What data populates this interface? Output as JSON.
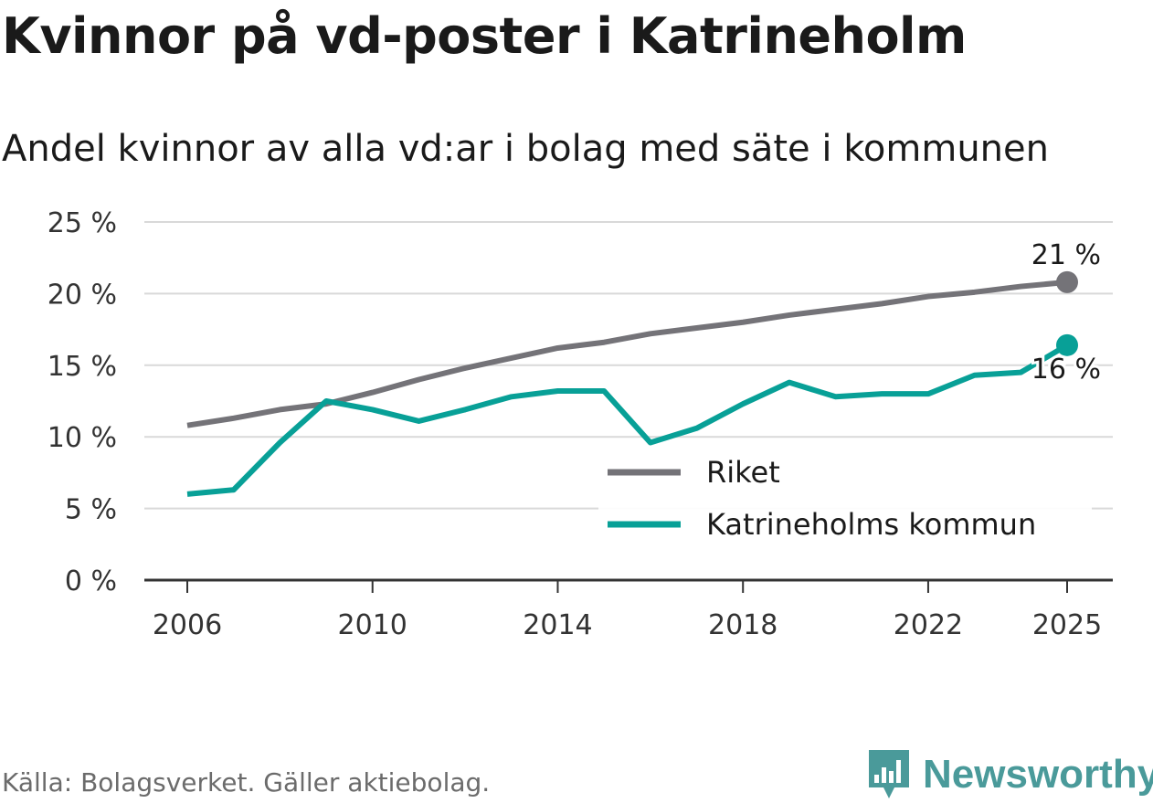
{
  "header": {
    "title": "Kvinnor på vd-poster i Katrineholm",
    "subtitle": "Andel kvinnor av alla vd:ar i bolag med säte i kommunen"
  },
  "footer": {
    "source": "Källa: Bolagsverket. Gäller aktiebolag.",
    "brand": "Newsworthy",
    "brand_icon": "newsworthy-logo-icon"
  },
  "colors": {
    "riket": "#747378",
    "kommun": "#08a097",
    "grid": "#d9d9d9",
    "axis": "#333333",
    "brand": "#4a9a9a"
  },
  "chart_data": {
    "type": "line",
    "title": "Kvinnor på vd-poster i Katrineholm",
    "subtitle": "Andel kvinnor av alla vd:ar i bolag med säte i kommunen",
    "xlabel": "",
    "ylabel": "",
    "xlim": [
      2006,
      2025
    ],
    "ylim": [
      0,
      25
    ],
    "yticks": [
      0,
      5,
      10,
      15,
      20,
      25
    ],
    "ytick_labels": [
      "0 %",
      "5 %",
      "10 %",
      "15 %",
      "20 %",
      "25 %"
    ],
    "xticks": [
      2006,
      2010,
      2014,
      2018,
      2022,
      2025
    ],
    "xtick_labels": [
      "2006",
      "2010",
      "2014",
      "2018",
      "2022",
      "2025"
    ],
    "grid": true,
    "legend_position": "bottom-right",
    "x": [
      2006,
      2007,
      2008,
      2009,
      2010,
      2011,
      2012,
      2013,
      2014,
      2015,
      2016,
      2017,
      2018,
      2019,
      2020,
      2021,
      2022,
      2023,
      2024,
      2025
    ],
    "series": [
      {
        "name": "Riket",
        "color_key": "riket",
        "values": [
          10.8,
          11.3,
          11.9,
          12.3,
          13.1,
          14.0,
          14.8,
          15.5,
          16.2,
          16.6,
          17.2,
          17.6,
          18.0,
          18.5,
          18.9,
          19.3,
          19.8,
          20.1,
          20.5,
          20.8
        ],
        "end_label": "21 %"
      },
      {
        "name": "Katrineholms kommun",
        "color_key": "kommun",
        "values": [
          6.0,
          6.3,
          9.6,
          12.5,
          11.9,
          11.1,
          11.9,
          12.8,
          13.2,
          13.2,
          9.6,
          10.6,
          12.3,
          13.8,
          12.8,
          13.0,
          13.0,
          14.3,
          14.5,
          16.4
        ],
        "end_label": "16 %"
      }
    ]
  }
}
